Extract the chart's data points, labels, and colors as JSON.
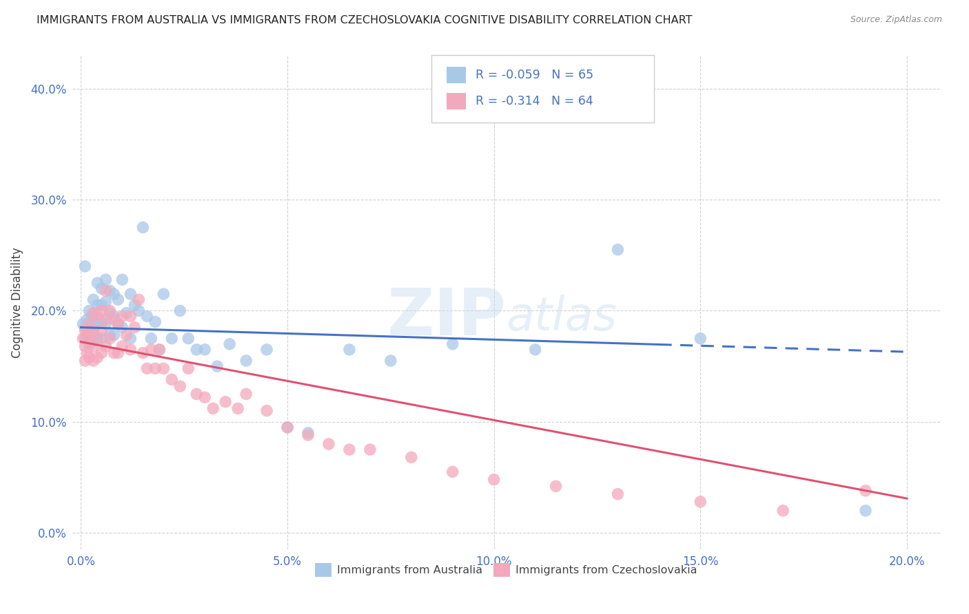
{
  "title": "IMMIGRANTS FROM AUSTRALIA VS IMMIGRANTS FROM CZECHOSLOVAKIA COGNITIVE DISABILITY CORRELATION CHART",
  "source": "Source: ZipAtlas.com",
  "xlabel_ticks": [
    "0.0%",
    "5.0%",
    "10.0%",
    "15.0%",
    "20.0%"
  ],
  "xlabel_tick_vals": [
    0.0,
    0.05,
    0.1,
    0.15,
    0.2
  ],
  "ylabel_ticks": [
    "0.0%",
    "10.0%",
    "20.0%",
    "30.0%",
    "40.0%"
  ],
  "ylabel_tick_vals": [
    0.0,
    0.1,
    0.2,
    0.3,
    0.4
  ],
  "ylabel": "Cognitive Disability",
  "xlim": [
    -0.002,
    0.208
  ],
  "ylim": [
    -0.015,
    0.43
  ],
  "legend_label1": "Immigrants from Australia",
  "legend_label2": "Immigrants from Czechoslovakia",
  "R1": -0.059,
  "N1": 65,
  "R2": -0.314,
  "N2": 64,
  "color1": "#a8c8e8",
  "color2": "#f4a8bb",
  "line_color1": "#4472c4",
  "line_color2": "#e05070",
  "line1_x0": 0.0,
  "line1_y0": 0.185,
  "line1_x1": 0.2,
  "line1_y1": 0.163,
  "line1_split": 0.14,
  "line2_x0": 0.0,
  "line2_y0": 0.172,
  "line2_x1": 0.2,
  "line2_y1": 0.031,
  "scatter1_x": [
    0.0005,
    0.001,
    0.001,
    0.001,
    0.0015,
    0.0015,
    0.002,
    0.002,
    0.002,
    0.0025,
    0.003,
    0.003,
    0.003,
    0.003,
    0.0035,
    0.004,
    0.004,
    0.004,
    0.004,
    0.005,
    0.005,
    0.005,
    0.005,
    0.006,
    0.006,
    0.006,
    0.007,
    0.007,
    0.007,
    0.008,
    0.008,
    0.008,
    0.009,
    0.009,
    0.01,
    0.01,
    0.011,
    0.012,
    0.012,
    0.013,
    0.014,
    0.015,
    0.016,
    0.017,
    0.018,
    0.019,
    0.02,
    0.022,
    0.024,
    0.026,
    0.028,
    0.03,
    0.033,
    0.036,
    0.04,
    0.045,
    0.05,
    0.055,
    0.065,
    0.075,
    0.09,
    0.11,
    0.13,
    0.15,
    0.19
  ],
  "scatter1_y": [
    0.188,
    0.185,
    0.24,
    0.175,
    0.192,
    0.178,
    0.2,
    0.183,
    0.17,
    0.195,
    0.21,
    0.195,
    0.182,
    0.172,
    0.188,
    0.225,
    0.205,
    0.188,
    0.175,
    0.22,
    0.205,
    0.19,
    0.175,
    0.228,
    0.208,
    0.188,
    0.218,
    0.198,
    0.178,
    0.215,
    0.195,
    0.178,
    0.21,
    0.188,
    0.228,
    0.185,
    0.198,
    0.215,
    0.175,
    0.205,
    0.2,
    0.275,
    0.195,
    0.175,
    0.19,
    0.165,
    0.215,
    0.175,
    0.2,
    0.175,
    0.165,
    0.165,
    0.15,
    0.17,
    0.155,
    0.165,
    0.095,
    0.09,
    0.165,
    0.155,
    0.17,
    0.165,
    0.255,
    0.175,
    0.02
  ],
  "scatter2_x": [
    0.0005,
    0.001,
    0.001,
    0.001,
    0.0015,
    0.0015,
    0.002,
    0.002,
    0.002,
    0.003,
    0.003,
    0.003,
    0.003,
    0.004,
    0.004,
    0.004,
    0.005,
    0.005,
    0.005,
    0.006,
    0.006,
    0.006,
    0.007,
    0.007,
    0.008,
    0.008,
    0.009,
    0.009,
    0.01,
    0.01,
    0.011,
    0.012,
    0.012,
    0.013,
    0.014,
    0.015,
    0.016,
    0.017,
    0.018,
    0.019,
    0.02,
    0.022,
    0.024,
    0.026,
    0.028,
    0.03,
    0.032,
    0.035,
    0.038,
    0.04,
    0.045,
    0.05,
    0.055,
    0.06,
    0.065,
    0.07,
    0.08,
    0.09,
    0.1,
    0.115,
    0.13,
    0.15,
    0.17,
    0.19
  ],
  "scatter2_y": [
    0.175,
    0.182,
    0.168,
    0.155,
    0.178,
    0.162,
    0.188,
    0.172,
    0.158,
    0.198,
    0.182,
    0.168,
    0.155,
    0.195,
    0.175,
    0.158,
    0.2,
    0.182,
    0.162,
    0.218,
    0.192,
    0.168,
    0.2,
    0.175,
    0.192,
    0.162,
    0.188,
    0.162,
    0.195,
    0.168,
    0.178,
    0.195,
    0.165,
    0.185,
    0.21,
    0.162,
    0.148,
    0.165,
    0.148,
    0.165,
    0.148,
    0.138,
    0.132,
    0.148,
    0.125,
    0.122,
    0.112,
    0.118,
    0.112,
    0.125,
    0.11,
    0.095,
    0.088,
    0.08,
    0.075,
    0.075,
    0.068,
    0.055,
    0.048,
    0.042,
    0.035,
    0.028,
    0.02,
    0.038
  ],
  "watermark_zip": "ZIP",
  "watermark_atlas": "atlas",
  "background_color": "#ffffff",
  "grid_color": "#cccccc"
}
